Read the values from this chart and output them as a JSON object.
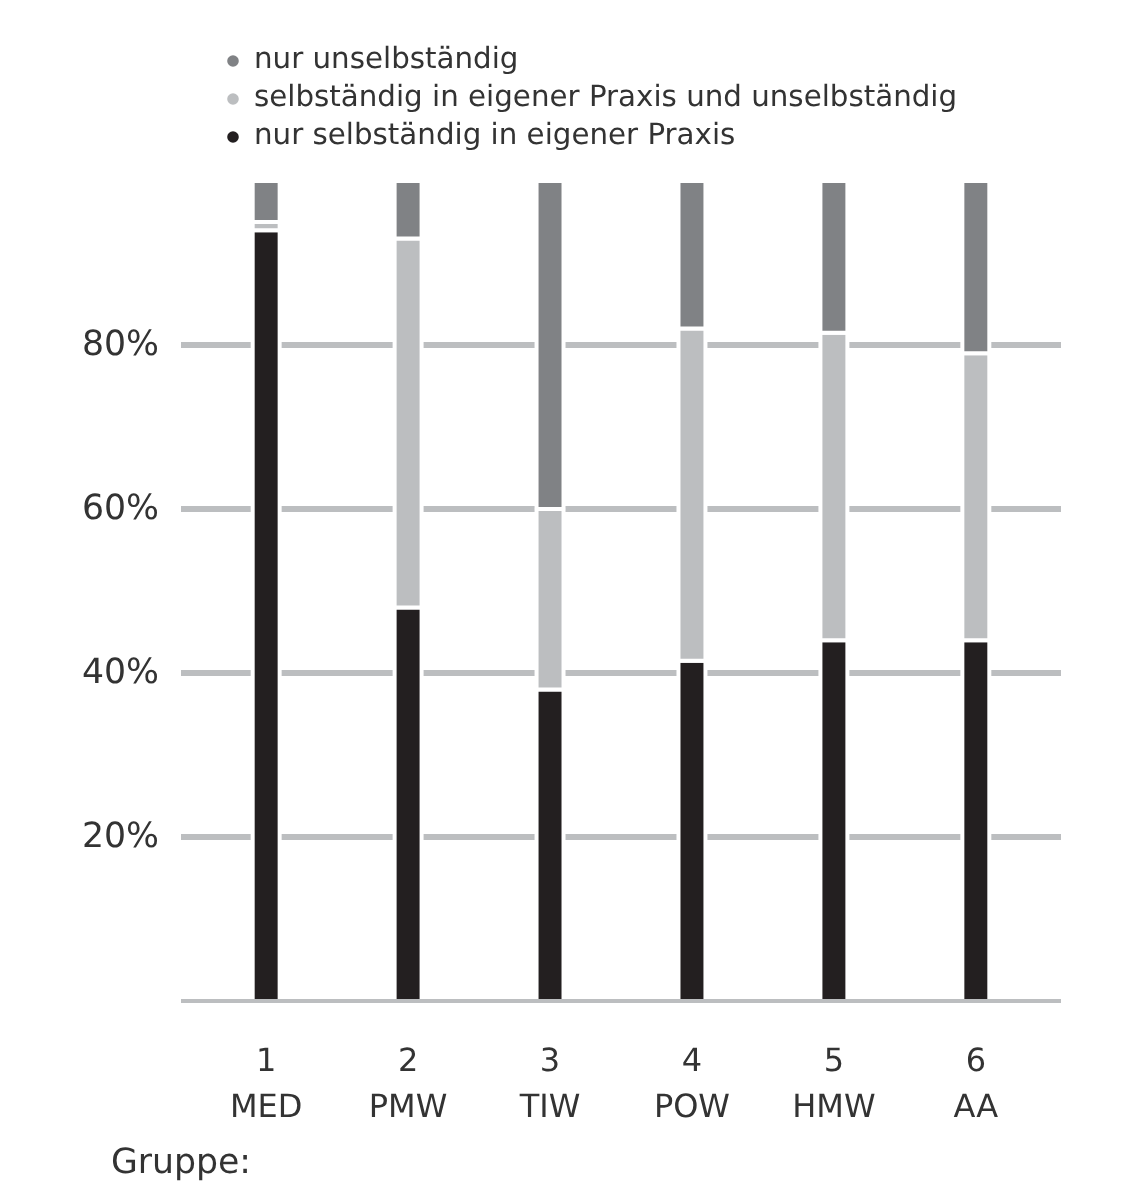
{
  "chart_data": {
    "type": "bar",
    "stacked": true,
    "xlabel": "Gruppe:",
    "categories": [
      "1\nMED",
      "2\nPMW",
      "3\nTIW",
      "4\nPOW",
      "5\nHMW",
      "6\nAA"
    ],
    "series": [
      {
        "name": "nur selbständig in eigener Praxis",
        "color": "#231f20",
        "values": [
          94,
          48,
          38,
          41.5,
          44,
          44
        ]
      },
      {
        "name": "selbständig in eigener Praxis und unselbständig",
        "color": "#bcbec0",
        "values": [
          1,
          45,
          22,
          40.5,
          37.5,
          35
        ]
      },
      {
        "name": "nur unselbständig",
        "color": "#808285",
        "values": [
          5,
          7,
          40,
          18,
          18.5,
          21
        ]
      }
    ],
    "ylim": [
      0,
      100
    ],
    "yticks": [
      {
        "value": 20,
        "label": "20%"
      },
      {
        "value": 40,
        "label": "40%"
      },
      {
        "value": 60,
        "label": "60%"
      },
      {
        "value": 80,
        "label": "80%"
      }
    ],
    "grid": "y",
    "legend": "top left"
  }
}
